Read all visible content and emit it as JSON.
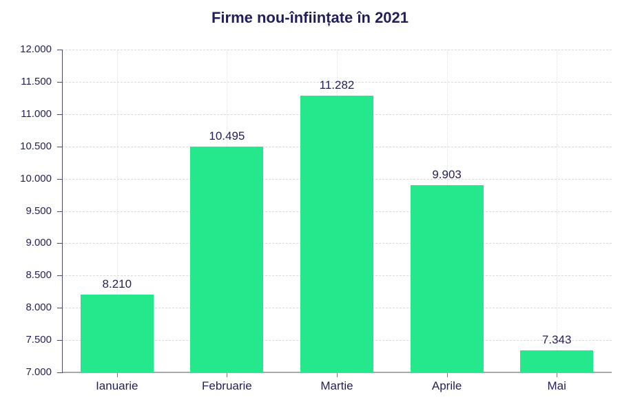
{
  "page": {
    "background_color": "#ffffff"
  },
  "chart_data": {
    "type": "bar",
    "title": "Firme nou-înființate în 2021",
    "categories": [
      "Ianuarie",
      "Februarie",
      "Martie",
      "Aprile",
      "Mai"
    ],
    "values": [
      8210,
      10495,
      11282,
      9903,
      7343
    ],
    "value_labels": [
      "8.210",
      "10.495",
      "11.282",
      "9.903",
      "7.343"
    ],
    "xlabel": "",
    "ylabel": "",
    "ylim": [
      7000,
      12000
    ],
    "ytick_step": 500,
    "ytick_labels": [
      "7.000",
      "7.500",
      "8.000",
      "8.500",
      "9.000",
      "9.500",
      "10.000",
      "10.500",
      "11.000",
      "11.500",
      "12.000"
    ],
    "legend": "none",
    "grid": {
      "horizontal": "dashed",
      "vertical": "dotted-at-category-centers"
    },
    "colors": {
      "bar_fill": "#25e88c",
      "text_navy": "#221e5a",
      "horizontal_gridline": "#d9d9d9",
      "vertical_gridline": "#dfdfe6",
      "y_axis_line": "#4b4766",
      "x_axis_line": "#a9a9a9",
      "x_tick_mark": "#7a7a7a"
    }
  }
}
